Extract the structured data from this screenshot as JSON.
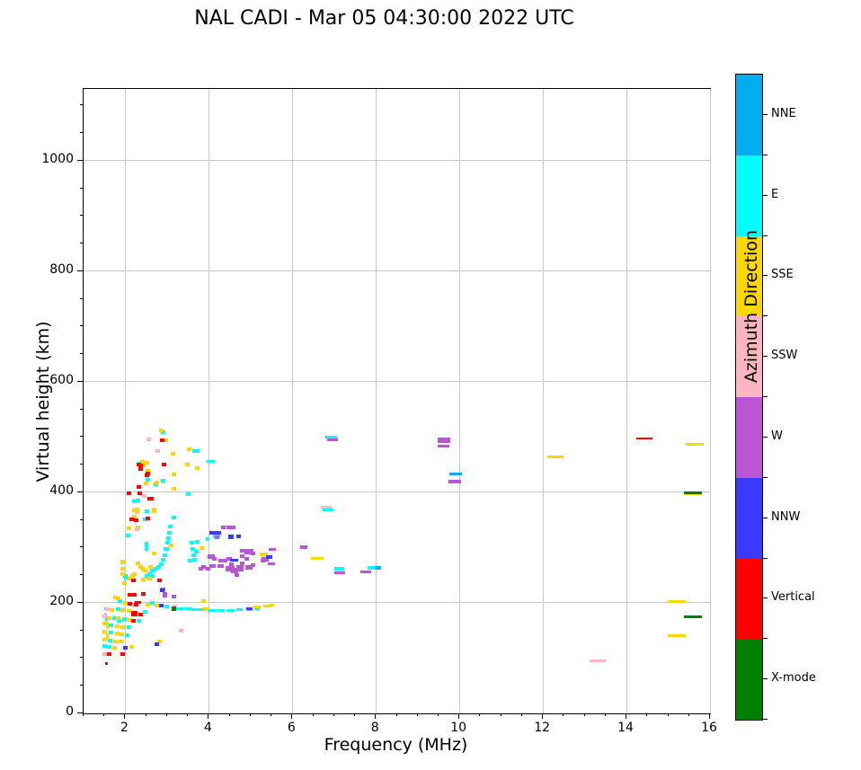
{
  "title": "NAL CADI - Mar 05 04:30:00 2022 UTC",
  "chart_data": {
    "type": "scatter",
    "title": "NAL CADI - Mar 05 04:30:00 2022 UTC",
    "xlabel": "Frequency (MHz)",
    "ylabel": "Virtual height (km)",
    "xlim": [
      1,
      16
    ],
    "ylim": [
      0,
      1130
    ],
    "xticks": [
      2,
      4,
      6,
      8,
      10,
      12,
      14,
      16
    ],
    "yticks": [
      0,
      200,
      400,
      600,
      800,
      1000
    ],
    "x_minor_step": 0.5,
    "y_minor_step": 50,
    "grid": true,
    "grid_color": "#c8c8c8",
    "colorbar": {
      "label": "Azimuth Direction",
      "categories_top_to_bottom": [
        {
          "label": "NNE",
          "color": "#00AEEF"
        },
        {
          "label": "E",
          "color": "#00FFFF"
        },
        {
          "label": "SSE",
          "color": "#FFD700"
        },
        {
          "label": "SSW",
          "color": "#FFB6C1"
        },
        {
          "label": "W",
          "color": "#BA55D3"
        },
        {
          "label": "NNW",
          "color": "#3A3AFF"
        },
        {
          "label": "Vertical",
          "color": "#FF0000"
        },
        {
          "label": "X-mode",
          "color": "#008000"
        }
      ]
    },
    "point_format": "[frequency_MHz, virtual_height_km, optional_width_px, optional_height_px]",
    "series": [
      {
        "name": "NNE",
        "color": "#00AEEF",
        "points": [
          [
            6.86,
            500,
            6,
            3
          ],
          [
            8.02,
            263,
            10,
            4
          ],
          [
            9.9,
            434,
            14,
            3
          ]
        ]
      },
      {
        "name": "E",
        "color": "#00FFFF",
        "points": [
          [
            2.9,
            509
          ],
          [
            3.68,
            474,
            8,
            4
          ],
          [
            4.05,
            456,
            9,
            3
          ],
          [
            2.34,
            452
          ],
          [
            2.54,
            423
          ],
          [
            2.9,
            421
          ],
          [
            2.73,
            415
          ],
          [
            3.51,
            397
          ],
          [
            2.22,
            384
          ],
          [
            2.3,
            386
          ],
          [
            2.52,
            366
          ],
          [
            2.47,
            351
          ],
          [
            3.16,
            354
          ],
          [
            3.08,
            338
          ],
          [
            3.05,
            327
          ],
          [
            3.03,
            317
          ],
          [
            3.01,
            309
          ],
          [
            2.97,
            298
          ],
          [
            2.95,
            286
          ],
          [
            2.9,
            278
          ],
          [
            2.86,
            270
          ],
          [
            2.8,
            265
          ],
          [
            2.73,
            262
          ],
          [
            2.65,
            259
          ],
          [
            2.58,
            252
          ],
          [
            2.52,
            249
          ],
          [
            2.02,
            246
          ],
          [
            3.59,
            309
          ],
          [
            3.61,
            298
          ],
          [
            3.63,
            286
          ],
          [
            3.66,
            278
          ],
          [
            3.72,
            311
          ],
          [
            3.7,
            293
          ],
          [
            3.55,
            276
          ],
          [
            2.06,
            322
          ],
          [
            2.51,
            302,
            4,
            10
          ],
          [
            3.0,
            297
          ],
          [
            2.0,
            249
          ],
          [
            2.65,
            249
          ],
          [
            1.87,
            203
          ],
          [
            1.83,
            189
          ],
          [
            2.65,
            200
          ],
          [
            2.47,
            184
          ],
          [
            1.75,
            172
          ],
          [
            1.98,
            171
          ],
          [
            2.32,
            167
          ],
          [
            1.85,
            167
          ],
          [
            1.65,
            159
          ],
          [
            2.09,
            156
          ],
          [
            1.65,
            146
          ],
          [
            2.04,
            141
          ],
          [
            1.63,
            132
          ],
          [
            1.51,
            122
          ],
          [
            1.61,
            120
          ],
          [
            2.99,
            193
          ],
          [
            3.32,
            190,
            9,
            3
          ],
          [
            3.52,
            189,
            8,
            3
          ],
          [
            3.68,
            188,
            9,
            3
          ],
          [
            3.85,
            187,
            7,
            3
          ],
          [
            4.08,
            186,
            11,
            3
          ],
          [
            4.3,
            186,
            7,
            3
          ],
          [
            4.52,
            186,
            9,
            3
          ],
          [
            4.73,
            187,
            7,
            3
          ],
          [
            4.97,
            188,
            7,
            3
          ],
          [
            5.15,
            189,
            6,
            3
          ],
          [
            6.85,
            368,
            12,
            3
          ],
          [
            6.95,
            500,
            12,
            3
          ],
          [
            7.12,
            261,
            11,
            4
          ],
          [
            7.88,
            263,
            8,
            4
          ],
          [
            4.18,
            321,
            8,
            4
          ],
          [
            3.97,
            315,
            4,
            4
          ],
          [
            1.52,
            189,
            3,
            3
          ],
          [
            1.55,
            170,
            3,
            3
          ]
        ]
      },
      {
        "name": "SSE",
        "color": "#FFD700",
        "points": [
          [
            2.86,
            512
          ],
          [
            2.97,
            494
          ],
          [
            3.53,
            478
          ],
          [
            3.14,
            470
          ],
          [
            3.72,
            444
          ],
          [
            3.48,
            450
          ],
          [
            2.4,
            455
          ],
          [
            2.52,
            454
          ],
          [
            2.43,
            449
          ],
          [
            2.54,
            439
          ],
          [
            2.56,
            436
          ],
          [
            3.16,
            433
          ],
          [
            2.49,
            416
          ],
          [
            2.75,
            418
          ],
          [
            3.16,
            407
          ],
          [
            2.3,
            336
          ],
          [
            2.28,
            369
          ],
          [
            2.69,
            369
          ],
          [
            2.22,
            368
          ],
          [
            2.28,
            364
          ],
          [
            2.22,
            356
          ],
          [
            2.69,
            366
          ],
          [
            2.09,
            335
          ],
          [
            2.22,
            353
          ],
          [
            3.1,
            304
          ],
          [
            3.82,
            299
          ],
          [
            2.69,
            290
          ],
          [
            1.93,
            275
          ],
          [
            1.94,
            262
          ],
          [
            1.93,
            252
          ],
          [
            2.37,
            265
          ],
          [
            2.6,
            265
          ],
          [
            2.47,
            259
          ],
          [
            2.3,
            272
          ],
          [
            2.22,
            252
          ],
          [
            2.17,
            249
          ],
          [
            1.94,
            273
          ],
          [
            2.43,
            262
          ],
          [
            3.87,
            203
          ],
          [
            3.91,
            189,
            7,
            3
          ],
          [
            5.16,
            192,
            8,
            3
          ],
          [
            5.38,
            195,
            8,
            3
          ],
          [
            5.5,
            196,
            6,
            3
          ],
          [
            2.82,
            130
          ],
          [
            2.11,
            244
          ],
          [
            2.43,
            242
          ],
          [
            2.58,
            244
          ],
          [
            1.98,
            236
          ],
          [
            1.76,
            210
          ],
          [
            2.0,
            200
          ],
          [
            2.54,
            197
          ],
          [
            2.75,
            195
          ],
          [
            1.68,
            187
          ],
          [
            1.94,
            187
          ],
          [
            2.09,
            185
          ],
          [
            1.61,
            172
          ],
          [
            1.83,
            172
          ],
          [
            2.09,
            169
          ],
          [
            1.51,
            163
          ],
          [
            1.8,
            158
          ],
          [
            1.94,
            156
          ],
          [
            1.51,
            148
          ],
          [
            1.8,
            145
          ],
          [
            1.92,
            143
          ],
          [
            1.51,
            133
          ],
          [
            1.76,
            130
          ],
          [
            1.9,
            130
          ],
          [
            1.75,
            119
          ],
          [
            2.15,
            120
          ],
          [
            1.83,
            208
          ],
          [
            5.31,
            287,
            9,
            4
          ],
          [
            6.6,
            280,
            14,
            3
          ],
          [
            12.3,
            465,
            18,
            3
          ],
          [
            15.63,
            487,
            20,
            3
          ],
          [
            15.2,
            203,
            20,
            3
          ],
          [
            15.2,
            141,
            20,
            3
          ],
          [
            15.6,
            396,
            20,
            2
          ],
          [
            1.56,
            160,
            3,
            8
          ],
          [
            1.56,
            140,
            3,
            6
          ]
        ]
      },
      {
        "name": "SSW",
        "color": "#FFB6C1",
        "points": [
          [
            2.56,
            496
          ],
          [
            2.77,
            474
          ],
          [
            2.45,
            393
          ],
          [
            2.28,
            333
          ],
          [
            2.15,
            197
          ],
          [
            1.57,
            189
          ],
          [
            1.51,
            176
          ],
          [
            1.51,
            107
          ],
          [
            3.33,
            150
          ],
          [
            3.18,
            193
          ],
          [
            6.8,
            373,
            12,
            3
          ],
          [
            13.3,
            95,
            18,
            3
          ],
          [
            1.52,
            180,
            3,
            3
          ]
        ]
      },
      {
        "name": "W",
        "color": "#BA55D3",
        "points": [
          [
            4.54,
            336,
            10,
            4
          ],
          [
            4.34,
            337
          ],
          [
            4.19,
            319
          ],
          [
            4.05,
            284,
            8,
            5
          ],
          [
            4.13,
            280
          ],
          [
            4.28,
            277
          ],
          [
            4.08,
            266,
            7,
            4
          ],
          [
            4.28,
            266,
            7,
            4
          ],
          [
            3.98,
            262
          ],
          [
            4.48,
            280,
            6,
            4
          ],
          [
            4.4,
            276
          ],
          [
            4.55,
            270
          ],
          [
            4.5,
            262,
            10,
            6
          ],
          [
            4.62,
            258,
            8,
            6
          ],
          [
            4.75,
            263,
            8,
            7
          ],
          [
            4.67,
            251
          ],
          [
            4.8,
            295,
            5,
            4
          ],
          [
            4.95,
            293,
            10,
            6
          ],
          [
            5.05,
            290
          ],
          [
            4.8,
            285
          ],
          [
            4.9,
            279
          ],
          [
            4.8,
            272
          ],
          [
            4.95,
            265,
            8,
            5
          ],
          [
            5.05,
            268
          ],
          [
            5.35,
            279,
            8,
            5
          ],
          [
            5.3,
            276
          ],
          [
            5.52,
            297,
            8,
            3
          ],
          [
            5.5,
            270,
            8,
            3
          ],
          [
            3.87,
            265
          ],
          [
            3.8,
            262
          ],
          [
            2.9,
            224
          ],
          [
            2.95,
            216
          ],
          [
            2.95,
            213
          ],
          [
            3.16,
            211
          ],
          [
            6.28,
            300,
            8,
            4
          ],
          [
            6.97,
            495,
            12,
            3
          ],
          [
            7.14,
            255,
            12,
            3
          ],
          [
            7.75,
            256,
            12,
            3
          ],
          [
            9.62,
            495,
            14,
            6
          ],
          [
            9.62,
            483,
            13,
            3
          ],
          [
            9.88,
            419,
            14,
            4
          ]
        ]
      },
      {
        "name": "NNW",
        "color": "#3A3AFF",
        "points": [
          [
            4.15,
            327,
            13,
            4
          ],
          [
            4.52,
            319,
            6,
            5
          ],
          [
            4.72,
            320,
            5,
            4
          ],
          [
            4.6,
            278,
            9,
            3
          ],
          [
            5.45,
            283,
            7,
            4
          ],
          [
            2.88,
            223
          ],
          [
            2.0,
            119
          ],
          [
            2.75,
            125
          ],
          [
            2.86,
            195
          ],
          [
            4.97,
            189,
            7,
            3
          ]
        ]
      },
      {
        "name": "Vertical",
        "color": "#FF0000",
        "points": [
          [
            2.88,
            494
          ],
          [
            2.92,
            450
          ],
          [
            2.32,
            450
          ],
          [
            2.37,
            449
          ],
          [
            2.37,
            442
          ],
          [
            2.52,
            431
          ],
          [
            2.54,
            434
          ],
          [
            2.32,
            410
          ],
          [
            2.34,
            398
          ],
          [
            2.09,
            398
          ],
          [
            2.58,
            389
          ],
          [
            2.62,
            389
          ],
          [
            2.15,
            351
          ],
          [
            2.26,
            350
          ],
          [
            2.54,
            353
          ],
          [
            2.19,
            241
          ],
          [
            2.82,
            241
          ],
          [
            2.11,
            215
          ],
          [
            2.22,
            215
          ],
          [
            2.43,
            216
          ],
          [
            2.3,
            200,
            7,
            3
          ],
          [
            2.22,
            181,
            7,
            6
          ],
          [
            2.37,
            179
          ],
          [
            2.19,
            167
          ],
          [
            1.94,
            107
          ],
          [
            1.61,
            107
          ],
          [
            1.55,
            91,
            3,
            3
          ],
          [
            2.11,
            198
          ],
          [
            2.26,
            197
          ],
          [
            14.43,
            498,
            18,
            2
          ]
        ]
      },
      {
        "name": "X-mode",
        "color": "#008000",
        "points": [
          [
            3.16,
            189,
            5,
            5
          ],
          [
            15.6,
            399,
            20,
            3
          ],
          [
            15.6,
            174,
            20,
            3
          ]
        ]
      }
    ]
  }
}
